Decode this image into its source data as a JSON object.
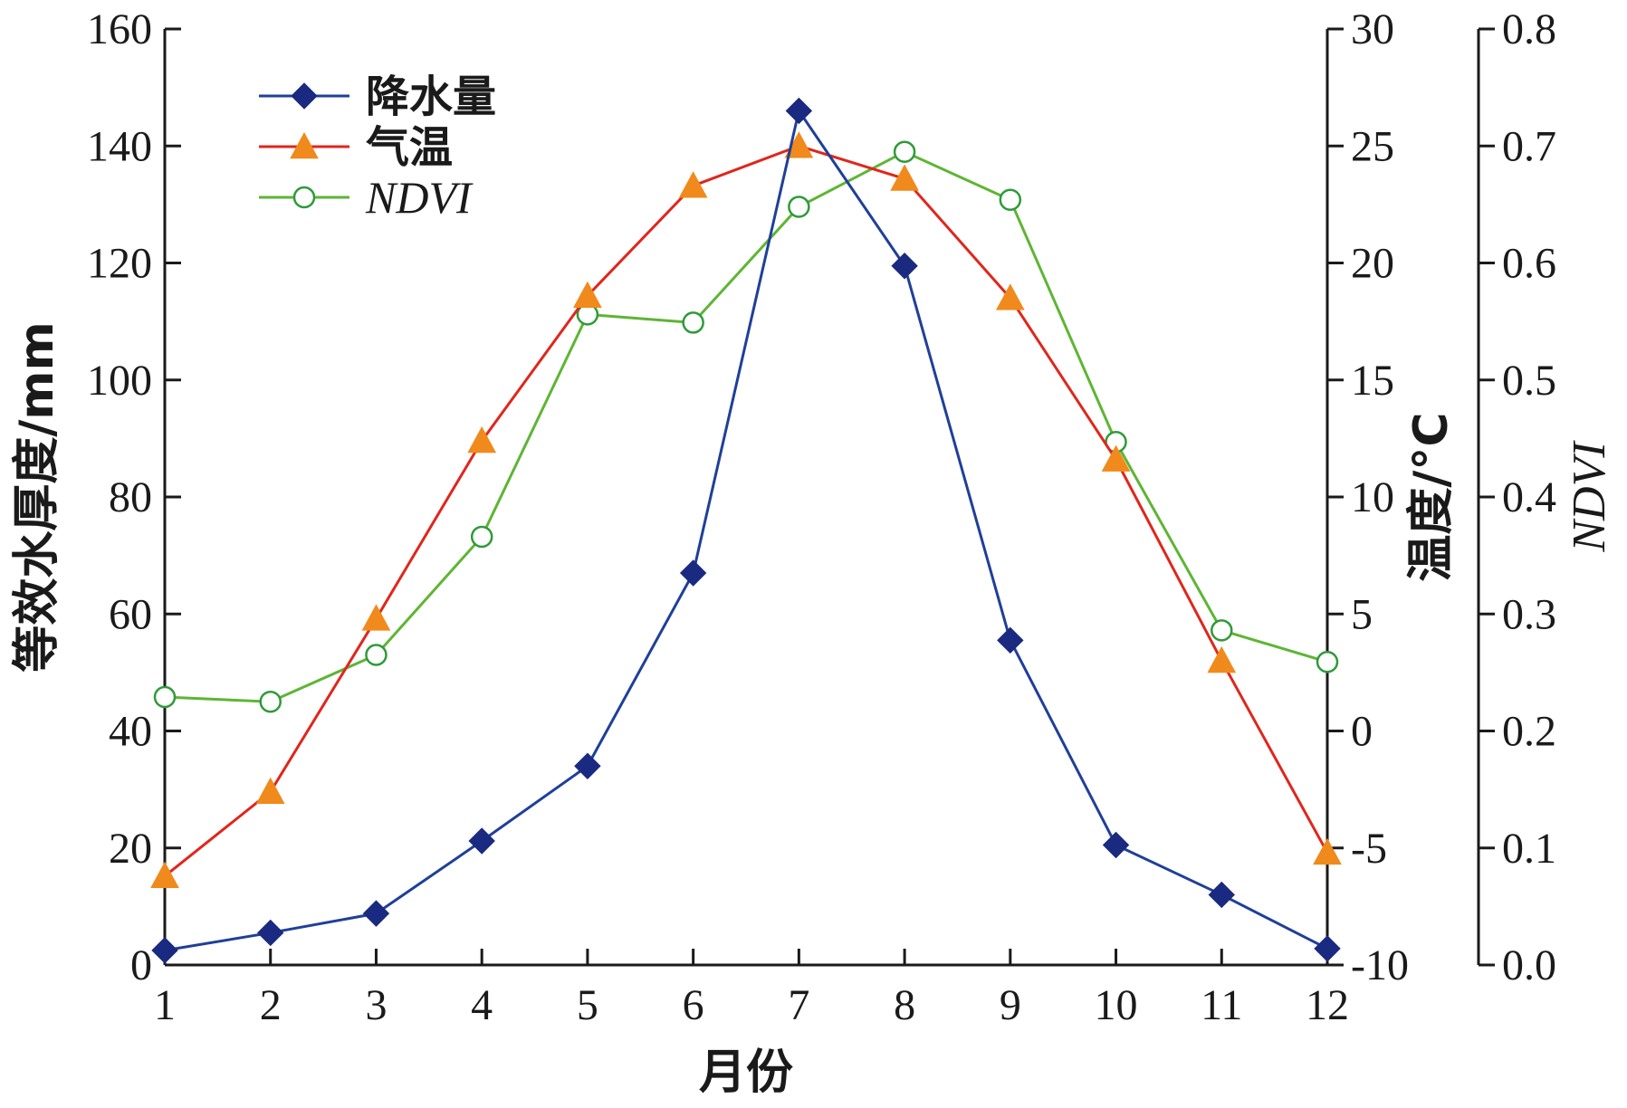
{
  "chart_data": {
    "type": "line",
    "x": [
      1,
      2,
      3,
      4,
      5,
      6,
      7,
      8,
      9,
      10,
      11,
      12
    ],
    "xlabel": "月份",
    "xlim": [
      1,
      12
    ],
    "axes": {
      "left": {
        "label": "等效水厚度/mm",
        "lim": [
          0,
          160
        ],
        "ticks": [
          0,
          20,
          40,
          60,
          80,
          100,
          120,
          140,
          160
        ],
        "tick_labels": [
          "0",
          "20",
          "40",
          "60",
          "80",
          "100",
          "120",
          "140",
          "160"
        ]
      },
      "right1": {
        "label": "温度/°C",
        "lim": [
          -10,
          30
        ],
        "ticks": [
          -10,
          -5,
          0,
          5,
          10,
          15,
          20,
          25,
          30
        ],
        "tick_labels": [
          "-10",
          "-5",
          "0",
          "5",
          "10",
          "15",
          "20",
          "25",
          "30"
        ]
      },
      "right2": {
        "label": "NDVI",
        "lim": [
          0,
          0.8
        ],
        "ticks": [
          0,
          0.1,
          0.2,
          0.3,
          0.4,
          0.5,
          0.6,
          0.7,
          0.8
        ],
        "tick_labels": [
          "0.0",
          "0.1",
          "0.2",
          "0.3",
          "0.4",
          "0.5",
          "0.6",
          "0.7",
          "0.8"
        ]
      }
    },
    "x_tick_labels": [
      "1",
      "2",
      "3",
      "4",
      "5",
      "6",
      "7",
      "8",
      "9",
      "10",
      "11",
      "12"
    ],
    "legend_position": "top-left",
    "grid": false,
    "series": [
      {
        "name": "降水量",
        "axis": "left",
        "color": "#1f3f99",
        "marker_color": "#1a2a80",
        "marker": "diamond",
        "values": [
          2.5,
          5.5,
          8.8,
          21.2,
          34.0,
          67.0,
          146.0,
          119.5,
          55.5,
          20.5,
          12.0,
          2.8
        ]
      },
      {
        "name": "气温",
        "axis": "right1",
        "color": "#e0261b",
        "marker_color": "#f08a1c",
        "marker": "triangle",
        "values": [
          -6.2,
          -2.6,
          4.8,
          12.4,
          18.6,
          23.3,
          25.0,
          23.6,
          18.5,
          11.6,
          3.0,
          -5.2
        ]
      },
      {
        "name": "NDVI",
        "name_italic": true,
        "axis": "right2",
        "color": "#5eb534",
        "marker_color": "#2f9a3a",
        "marker": "circle-open",
        "values": [
          0.229,
          0.225,
          0.265,
          0.366,
          0.556,
          0.549,
          0.648,
          0.695,
          0.654,
          0.447,
          0.286,
          0.259
        ]
      }
    ]
  }
}
